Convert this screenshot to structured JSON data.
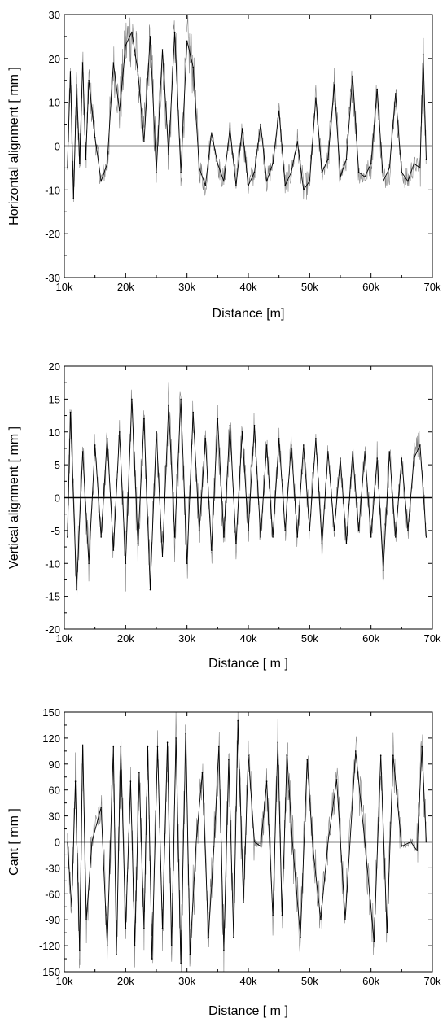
{
  "chart_data": [
    {
      "type": "line",
      "xlabel": "Distance [m]",
      "ylabel": "Horizontal alignment [ mm ]",
      "xlim": [
        10000,
        70000
      ],
      "ylim": [
        -30,
        30
      ],
      "x_ticks": [
        10000,
        20000,
        30000,
        40000,
        50000,
        60000,
        70000
      ],
      "x_tick_labels": [
        "10k",
        "20k",
        "30k",
        "40k",
        "50k",
        "60k",
        "70k"
      ],
      "y_ticks": [
        -30,
        -20,
        -10,
        0,
        10,
        20,
        30
      ],
      "y_tick_labels": [
        "-30",
        "-20",
        "-10",
        "0",
        "10",
        "20",
        "30"
      ],
      "zero_line": true,
      "series": [
        {
          "x": [
            10500,
            11000,
            11500,
            12000,
            12500,
            13000,
            13500,
            14000,
            15000,
            16000,
            17000,
            18000,
            19000,
            20000,
            21000,
            22000,
            23000,
            24000,
            25000,
            26000,
            27000,
            28000,
            29000,
            30000,
            31000,
            32000,
            33000,
            34000,
            35000,
            36000,
            37000,
            38000,
            39000,
            40000,
            41000,
            42000,
            43000,
            44000,
            45000,
            46000,
            47000,
            48000,
            49000,
            50000,
            51000,
            52000,
            53000,
            54000,
            55000,
            56000,
            57000,
            58000,
            59000,
            60000,
            61000,
            62000,
            63000,
            64000,
            65000,
            66000,
            67000,
            68000,
            68500,
            69000
          ],
          "values": [
            -5,
            17,
            -12,
            14,
            -4,
            19,
            -3,
            15,
            2,
            -8,
            -4,
            19,
            8,
            23,
            26,
            17,
            1,
            25,
            -6,
            22,
            -2,
            26,
            -6,
            24,
            18,
            -5,
            -9,
            3,
            -4,
            -8,
            4,
            -9,
            4,
            -9,
            -6,
            5,
            -8,
            -4,
            8,
            -9,
            -6,
            1,
            -10,
            -8,
            11,
            -6,
            -3,
            14,
            -7,
            -3,
            16,
            -6,
            -7,
            -4,
            13,
            -8,
            -5,
            12,
            -6,
            -8,
            -4,
            -5,
            21,
            -3
          ],
          "color": "#000000"
        }
      ]
    },
    {
      "type": "line",
      "xlabel": "Distance [ m ]",
      "ylabel": "Vertical alignment [ mm ]",
      "xlim": [
        10000,
        70000
      ],
      "ylim": [
        -20,
        20
      ],
      "x_ticks": [
        10000,
        20000,
        30000,
        40000,
        50000,
        60000,
        70000
      ],
      "x_tick_labels": [
        "10k",
        "20k",
        "30k",
        "40k",
        "50k",
        "60k",
        "70k"
      ],
      "y_ticks": [
        -20,
        -15,
        -10,
        -5,
        0,
        5,
        10,
        15,
        20
      ],
      "y_tick_labels": [
        "-20",
        "-15",
        "-10",
        "-5",
        "0",
        "5",
        "10",
        "15",
        "20"
      ],
      "zero_line": true,
      "series": [
        {
          "x": [
            10500,
            11000,
            12000,
            13000,
            14000,
            15000,
            16000,
            17000,
            18000,
            19000,
            20000,
            21000,
            22000,
            23000,
            24000,
            25000,
            26000,
            27000,
            28000,
            29000,
            30000,
            31000,
            32000,
            33000,
            34000,
            35000,
            36000,
            37000,
            38000,
            39000,
            40000,
            41000,
            42000,
            43000,
            44000,
            45000,
            46000,
            47000,
            48000,
            49000,
            50000,
            51000,
            52000,
            53000,
            54000,
            55000,
            56000,
            57000,
            58000,
            59000,
            60000,
            61000,
            62000,
            63000,
            64000,
            65000,
            66000,
            67000,
            68000,
            69000
          ],
          "values": [
            -6,
            13,
            -14,
            7,
            -10,
            8,
            -6,
            9,
            -8,
            10,
            -10,
            15,
            -7,
            12,
            -14,
            10,
            -9,
            14,
            -6,
            15,
            -10,
            13,
            -5,
            9,
            -8,
            12,
            -6,
            11,
            -7,
            10,
            -5,
            11,
            -6,
            8,
            -6,
            9,
            -5,
            8,
            -6,
            8,
            -5,
            9,
            -7,
            7,
            -5,
            6,
            -7,
            7,
            -5,
            7,
            -6,
            6,
            -11,
            7,
            -6,
            6,
            -5,
            6,
            8,
            -6
          ],
          "color": "#000000"
        }
      ]
    },
    {
      "type": "line",
      "xlabel": "Distance [ m ]",
      "ylabel": "Cant [ mm ]",
      "xlim": [
        10000,
        70000
      ],
      "ylim": [
        -150,
        150
      ],
      "x_ticks": [
        10000,
        20000,
        30000,
        40000,
        50000,
        60000,
        70000
      ],
      "x_tick_labels": [
        "10k",
        "20k",
        "30k",
        "40k",
        "50k",
        "60k",
        "70k"
      ],
      "y_ticks": [
        -150,
        -120,
        -90,
        -60,
        -30,
        0,
        30,
        60,
        90,
        120,
        150
      ],
      "y_tick_labels": [
        "-150",
        "-120",
        "-90",
        "-60",
        "-30",
        "0",
        "30",
        "60",
        "90",
        "120",
        "150"
      ],
      "zero_line": true,
      "series": [
        {
          "x": [
            10500,
            11200,
            11800,
            12500,
            13000,
            13600,
            14500,
            16000,
            17000,
            18000,
            18500,
            19200,
            20000,
            20800,
            21500,
            22200,
            23000,
            23600,
            24300,
            25200,
            26000,
            26800,
            27500,
            28200,
            29000,
            29800,
            30500,
            31500,
            32500,
            33500,
            34400,
            35200,
            36000,
            36800,
            37600,
            38300,
            39200,
            40000,
            41000,
            42000,
            43000,
            44000,
            44800,
            45500,
            46300,
            47200,
            48500,
            49600,
            50500,
            51800,
            53000,
            54400,
            55800,
            57500,
            59000,
            60500,
            61600,
            62600,
            63600,
            65000,
            66500,
            67500,
            68300,
            69000
          ],
          "values": [
            0,
            -75,
            70,
            -125,
            112,
            -90,
            0,
            40,
            -120,
            110,
            -130,
            110,
            -100,
            70,
            -120,
            80,
            -100,
            110,
            -135,
            110,
            -100,
            115,
            -120,
            120,
            -140,
            125,
            -130,
            0,
            80,
            -110,
            -5,
            110,
            -125,
            95,
            -110,
            140,
            -70,
            100,
            0,
            -5,
            70,
            -85,
            115,
            -85,
            100,
            0,
            -110,
            95,
            -5,
            -90,
            0,
            72,
            -90,
            105,
            0,
            -115,
            100,
            -105,
            100,
            -5,
            0,
            -10,
            110,
            0
          ],
          "color": "#000000"
        }
      ]
    }
  ]
}
